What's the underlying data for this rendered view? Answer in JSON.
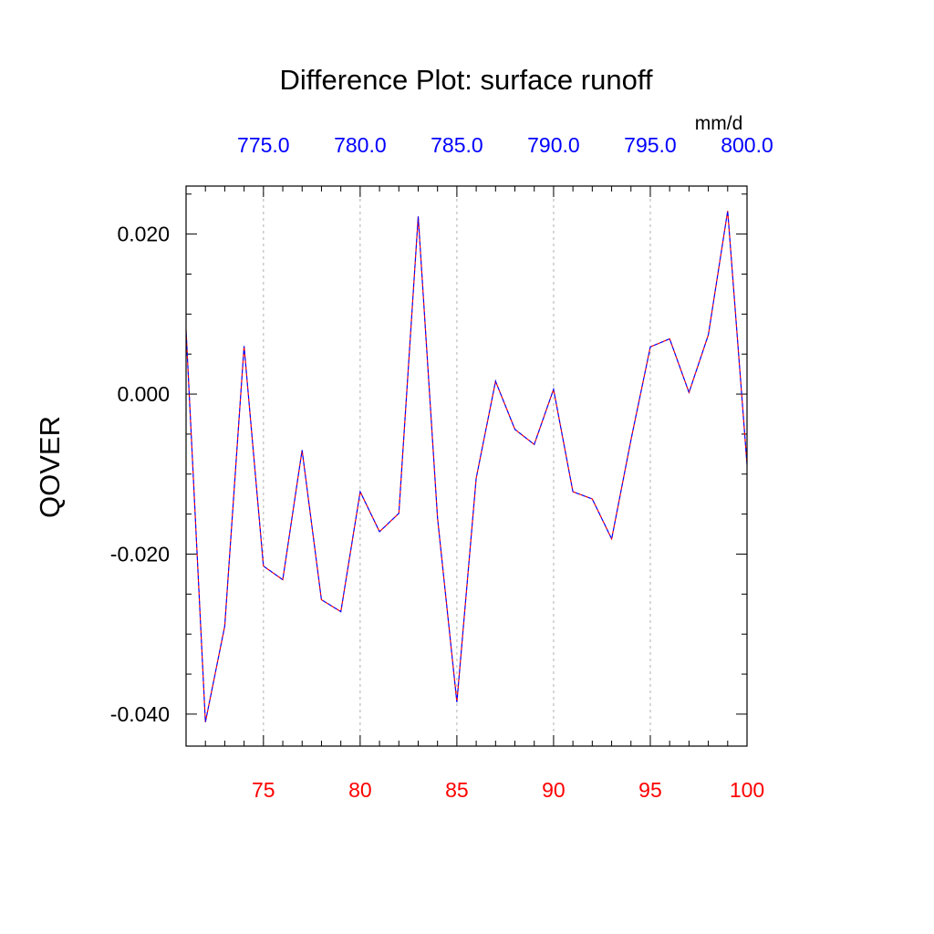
{
  "colors": {
    "background": "#ffffff",
    "axis": "#000000",
    "grid": "#b0b0b0",
    "bottom_ticks": "#ff0000",
    "top_ticks": "#0000ff",
    "series_a": "#ff0000",
    "series_b": "#0000ff"
  },
  "chart_data": {
    "type": "line",
    "title": "Difference Plot: surface runoff",
    "ylabel": "QOVER",
    "units_label": "mm/d",
    "xlim": [
      71,
      100
    ],
    "ylim": [
      -0.044,
      0.026
    ],
    "grid": "vertical dashed at major x ticks",
    "x_ticks": [
      75,
      80,
      85,
      90,
      95,
      100
    ],
    "x_tick_labels": [
      "75",
      "80",
      "85",
      "90",
      "95",
      "100"
    ],
    "top_axis": {
      "xlim": [
        771,
        800
      ],
      "ticks": [
        775,
        780,
        785,
        790,
        795,
        800
      ],
      "tick_labels": [
        "775.0",
        "780.0",
        "785.0",
        "790.0",
        "795.0",
        "800.0"
      ]
    },
    "y_ticks": [
      0.02,
      0.0,
      -0.02,
      -0.04
    ],
    "y_tick_labels": [
      "0.020",
      "0.000",
      "-0.020",
      "-0.040"
    ],
    "x": [
      71,
      72,
      73,
      74,
      75,
      76,
      77,
      78,
      79,
      80,
      81,
      82,
      83,
      84,
      85,
      86,
      87,
      88,
      89,
      90,
      91,
      92,
      93,
      94,
      95,
      96,
      97,
      98,
      99,
      100
    ],
    "series": [
      {
        "style": "dashed",
        "color": "#ff0000",
        "values": [
          0.008,
          -0.041,
          -0.029,
          0.006,
          -0.0215,
          -0.0232,
          -0.007,
          -0.0257,
          -0.0272,
          -0.0122,
          -0.0172,
          -0.0149,
          0.0222,
          -0.0155,
          -0.0385,
          -0.0105,
          0.0016,
          -0.0044,
          -0.0063,
          0.0006,
          -0.0122,
          -0.0131,
          -0.0181,
          -0.0057,
          0.0059,
          0.0069,
          0.0002,
          0.0074,
          0.0229,
          -0.0088
        ]
      },
      {
        "style": "dashed",
        "color": "#0000ff",
        "values": [
          0.008,
          -0.041,
          -0.029,
          0.006,
          -0.0215,
          -0.0232,
          -0.007,
          -0.0257,
          -0.0272,
          -0.0122,
          -0.0172,
          -0.0149,
          0.0222,
          -0.0155,
          -0.0385,
          -0.0105,
          0.0016,
          -0.0044,
          -0.0063,
          0.0006,
          -0.0122,
          -0.0131,
          -0.0181,
          -0.0057,
          0.0059,
          0.0069,
          0.0002,
          0.0074,
          0.0229,
          -0.0088
        ]
      }
    ]
  }
}
